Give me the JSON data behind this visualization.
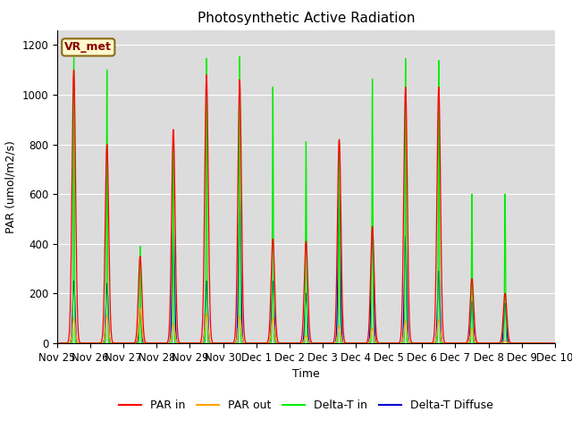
{
  "title": "Photosynthetic Active Radiation",
  "ylabel": "PAR (umol/m2/s)",
  "xlabel": "Time",
  "annotation": "VR_met",
  "ylim": [
    0,
    1260
  ],
  "yticks": [
    0,
    200,
    400,
    600,
    800,
    1000,
    1200
  ],
  "xtick_labels": [
    "Nov 25",
    "Nov 26",
    "Nov 27",
    "Nov 28",
    "Nov 29",
    "Nov 30",
    "Dec 1",
    "Dec 2",
    "Dec 3",
    "Dec 4",
    "Dec 5",
    "Dec 6",
    "Dec 7",
    "Dec 8",
    "Dec 9",
    "Dec 10"
  ],
  "bg_color": "#dcdcdc",
  "fig_bg": "#ffffff",
  "legend_entries": [
    "PAR in",
    "PAR out",
    "Delta-T in",
    "Delta-T Diffuse"
  ],
  "line_colors": [
    "#ff0000",
    "#ffa500",
    "#00ee00",
    "#0000cc"
  ],
  "par_in_peaks": [
    1100,
    800,
    350,
    860,
    1080,
    1060,
    420,
    410,
    820,
    470,
    1030,
    1030,
    260,
    200,
    0
  ],
  "par_out_peaks": [
    100,
    110,
    140,
    80,
    120,
    110,
    100,
    30,
    70,
    60,
    90,
    95,
    60,
    10,
    0
  ],
  "delta_t_peaks": [
    1150,
    1100,
    390,
    820,
    1150,
    1160,
    1040,
    820,
    820,
    1070,
    1150,
    1140,
    600,
    600,
    0
  ],
  "delta_d_peaks": [
    250,
    240,
    130,
    490,
    250,
    580,
    250,
    200,
    600,
    450,
    430,
    290,
    170,
    160,
    0
  ],
  "n_days": 15,
  "ppd": 240
}
